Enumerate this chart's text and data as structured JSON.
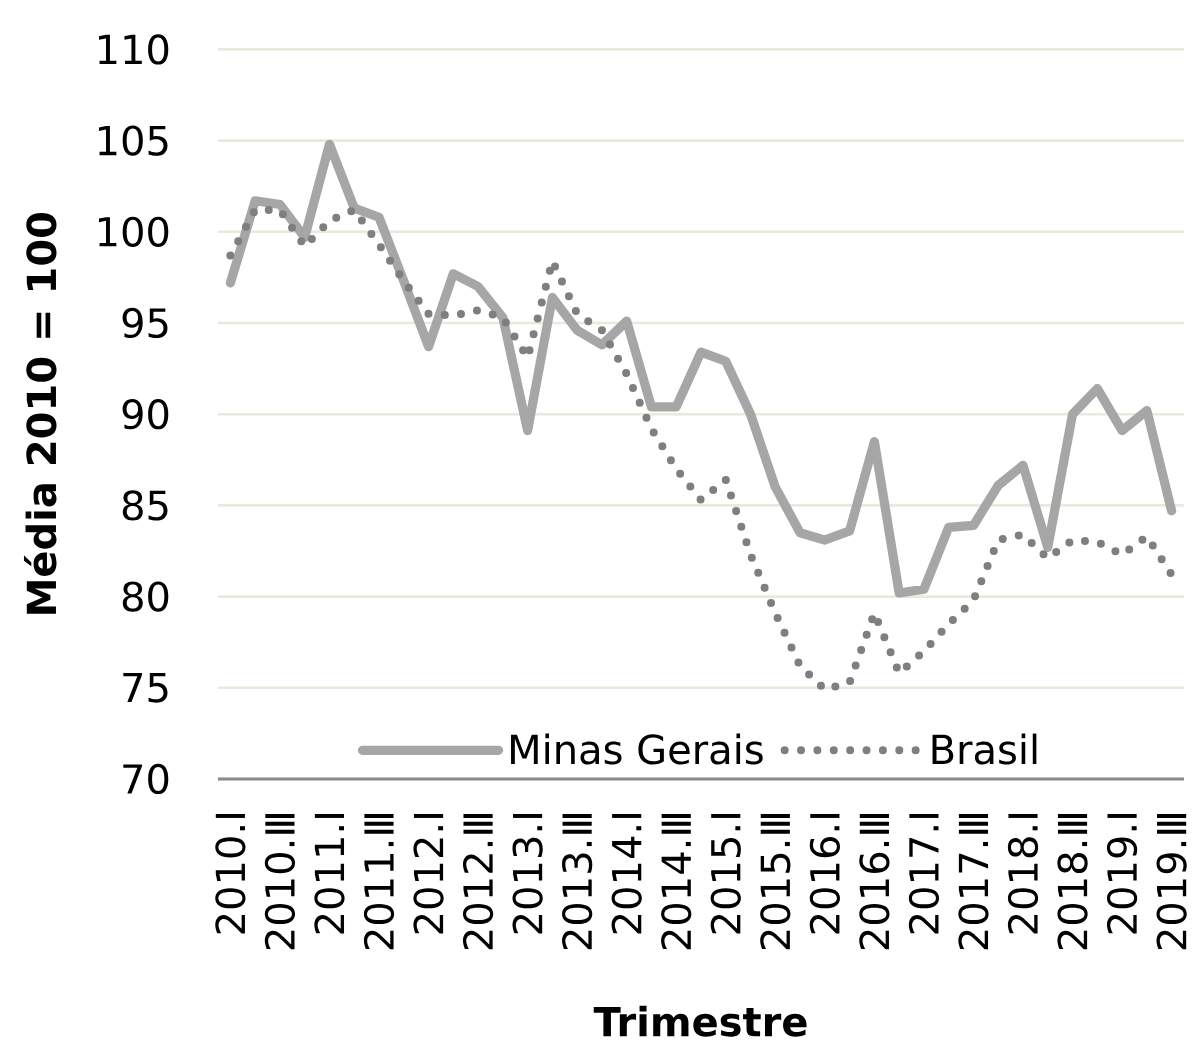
{
  "chart_data": {
    "type": "line",
    "xlabel": "Trimestre",
    "ylabel": "Média 2010 = 100",
    "categories": [
      "2010.Ⅰ",
      null,
      "2010.Ⅲ",
      null,
      "2011.Ⅰ",
      null,
      "2011.Ⅲ",
      null,
      "2012.Ⅰ",
      null,
      "2012.Ⅲ",
      null,
      "2013.Ⅰ",
      null,
      "2013.Ⅲ",
      null,
      "2014.Ⅰ",
      null,
      "2014.Ⅲ",
      null,
      "2015.Ⅰ",
      null,
      "2015.Ⅲ",
      null,
      "2016.Ⅰ",
      null,
      "2016.Ⅲ",
      null,
      "2017.Ⅰ",
      null,
      "2017.Ⅲ",
      null,
      "2018.Ⅰ",
      null,
      "2018.Ⅲ",
      null,
      "2019.Ⅰ",
      null,
      "2019.Ⅲ"
    ],
    "series": [
      {
        "name": "Minas Gerais",
        "color": "#a6a6a6",
        "line_style": "solid",
        "values": [
          97.2,
          101.7,
          101.5,
          99.7,
          104.8,
          101.3,
          100.8,
          97.3,
          93.7,
          97.7,
          97.0,
          95.3,
          89.1,
          96.4,
          94.6,
          93.8,
          95.1,
          90.4,
          90.4,
          93.4,
          92.9,
          90.0,
          86.0,
          83.5,
          83.1,
          83.6,
          88.5,
          80.2,
          80.4,
          83.8,
          83.9,
          86.1,
          87.2,
          82.7,
          90.0,
          91.4,
          89.1,
          90.2,
          84.7
        ]
      },
      {
        "name": "Brasil",
        "color": "#7f7f7f",
        "line_style": "dotted",
        "values": [
          98.7,
          101.2,
          101.2,
          99.2,
          100.6,
          101.2,
          99.3,
          97.3,
          95.5,
          95.4,
          95.7,
          95.3,
          93.1,
          98.4,
          95.5,
          94.6,
          92.2,
          89.2,
          87.0,
          85.3,
          86.4,
          82.3,
          79.1,
          76.2,
          74.9,
          75.3,
          79.1,
          75.8,
          77.0,
          78.5,
          79.8,
          83.1,
          83.4,
          82.1,
          83.1,
          83.0,
          82.3,
          83.3,
          81.2
        ]
      }
    ],
    "ylim": [
      70,
      110
    ],
    "yticks": [
      70,
      75,
      80,
      85,
      90,
      95,
      100,
      105,
      110
    ],
    "grid": "y",
    "legend": "bottom"
  }
}
